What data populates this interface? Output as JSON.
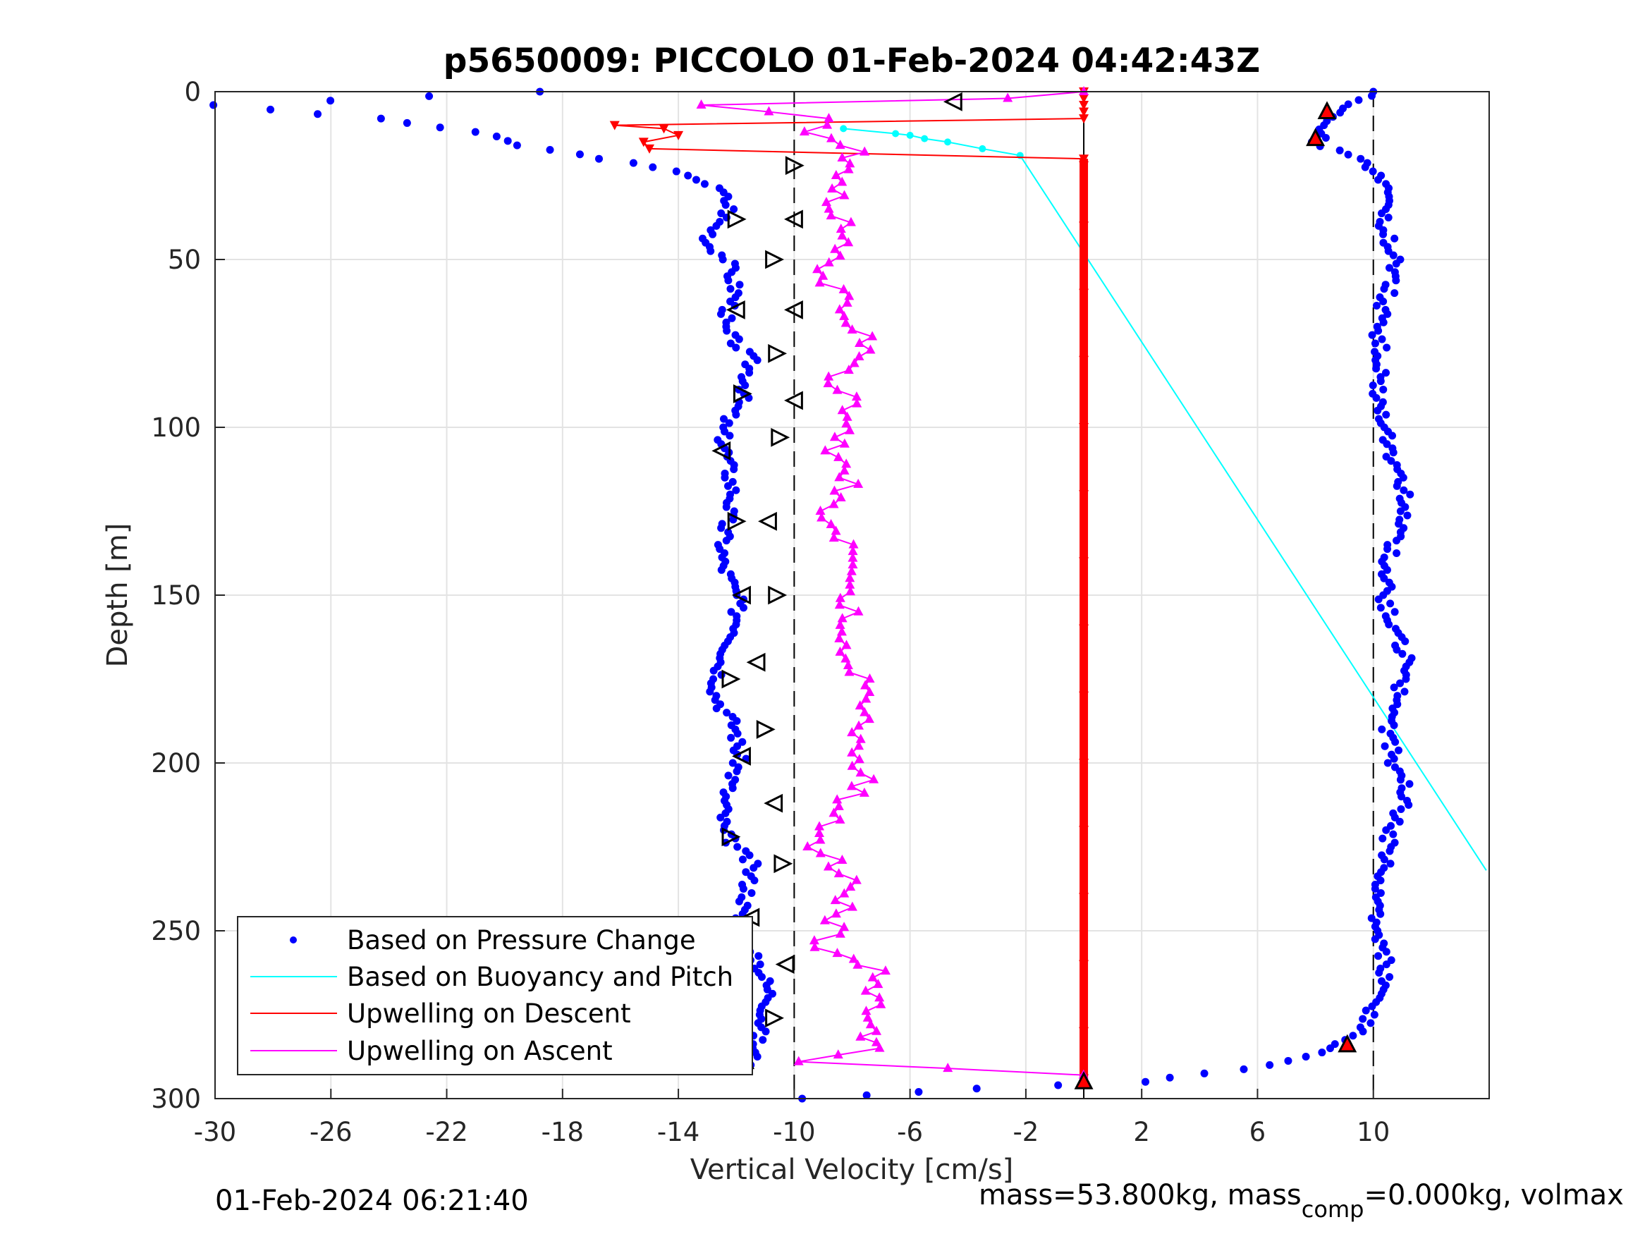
{
  "chart_data": {
    "type": "scatter",
    "title": "p5650009: PICCOLO 01-Feb-2024 04:42:43Z",
    "xlabel": "Vertical Velocity [cm/s]",
    "ylabel": "Depth [m]",
    "xlim": [
      -30,
      14
    ],
    "ylim": [
      0,
      300
    ],
    "y_reversed": true,
    "grid": true,
    "x_ticks": [
      -30,
      -26,
      -22,
      -18,
      -14,
      -10,
      -6,
      -2,
      2,
      6,
      10
    ],
    "y_ticks": [
      0,
      50,
      100,
      150,
      200,
      250,
      300
    ],
    "reference_lines": [
      {
        "x": -10,
        "style": "dashed"
      },
      {
        "x": 10,
        "style": "dashed"
      },
      {
        "x": 0,
        "style": "solid"
      }
    ],
    "legend_position": "bottom-left",
    "legend": [
      "Based on Pressure Change",
      "Based on Buoyancy and Pitch",
      "Upwelling on Descent",
      "Upwelling on Ascent"
    ],
    "colors": {
      "pressure": "#0000ff",
      "buoyancy": "#00ffff",
      "descent": "#ff0000",
      "ascent": "#ff00ff",
      "marker_edge": "#000000",
      "grid": "#e3e3e3"
    },
    "series": [
      {
        "name": "Based on Pressure Change",
        "descent_profile": {
          "depth": [
            0,
            4,
            8,
            12,
            16,
            20,
            25,
            30,
            35,
            40,
            45,
            50,
            60,
            70,
            80,
            90,
            100,
            110,
            120,
            130,
            140,
            150,
            160,
            170,
            180,
            190,
            200,
            210,
            220,
            230,
            240,
            250,
            260,
            270,
            280,
            290
          ],
          "velocity": [
            -18.7,
            -30,
            -24.5,
            -21,
            -19.5,
            -16.5,
            -13.5,
            -12.5,
            -12.2,
            -12.7,
            -13,
            -12.3,
            -12,
            -12.5,
            -11.5,
            -11.7,
            -12.5,
            -12.3,
            -12.1,
            -12.4,
            -12.5,
            -12.0,
            -11.9,
            -12.5,
            -12.7,
            -12.0,
            -11.9,
            -12.4,
            -12.5,
            -11.5,
            -11.6,
            -12.2,
            -11.2,
            -10.8,
            -11.2,
            -11.5
          ]
        },
        "ascent_profile": {
          "depth": [
            300,
            297,
            295,
            290,
            285,
            280,
            270,
            260,
            250,
            240,
            230,
            220,
            210,
            200,
            190,
            180,
            170,
            160,
            150,
            140,
            130,
            120,
            110,
            100,
            90,
            80,
            70,
            60,
            50,
            40,
            30,
            20,
            15,
            10,
            5,
            0
          ],
          "velocity": [
            -9.8,
            -3.5,
            2,
            6.5,
            8.5,
            9.6,
            10.2,
            10.5,
            10.0,
            10.1,
            10.4,
            10.6,
            11.2,
            10.7,
            10.5,
            10.8,
            11.3,
            10.6,
            10.4,
            10.5,
            10.9,
            11.1,
            10.6,
            10.5,
            10.1,
            10.3,
            10.1,
            10.5,
            10.7,
            10.4,
            10.6,
            9.5,
            8.0,
            8.5,
            9.0,
            10.0
          ]
        }
      },
      {
        "name": "Based on Buoyancy and Pitch",
        "depth": [
          11,
          12.5,
          13,
          14,
          15,
          17,
          19,
          232
        ],
        "velocity": [
          -8.3,
          -6.5,
          -6.0,
          -5.5,
          -4.7,
          -3.5,
          -2.2,
          13.9
        ]
      },
      {
        "name": "Upwelling on Descent",
        "depth": [
          0,
          2,
          4,
          6,
          8,
          10,
          11,
          13,
          15,
          17,
          20,
          22,
          40,
          60,
          80,
          100,
          120,
          140,
          160,
          180,
          200,
          220,
          240,
          260,
          280,
          294
        ],
        "velocity": [
          0,
          0,
          0,
          0,
          0,
          -16.2,
          -14.5,
          -14.0,
          -15.2,
          -15.0,
          0,
          0,
          0,
          0,
          0,
          0,
          0,
          0,
          0,
          0,
          0,
          0,
          0,
          0,
          0,
          0
        ]
      },
      {
        "name": "Upwelling on Ascent",
        "depth": [
          293,
          289,
          285,
          280,
          270,
          262,
          255,
          245,
          235,
          225,
          215,
          205,
          195,
          185,
          175,
          165,
          155,
          145,
          135,
          125,
          115,
          105,
          95,
          85,
          75,
          65,
          55,
          45,
          35,
          25,
          18,
          12,
          8,
          4,
          2,
          0
        ],
        "velocity": [
          0,
          -9.5,
          -7.0,
          -7.5,
          -7.2,
          -7.0,
          -9.0,
          -8.5,
          -8.0,
          -9.3,
          -8.5,
          -7.6,
          -8.0,
          -7.2,
          -7.8,
          -8.5,
          -8.0,
          -8.5,
          -8.0,
          -9.0,
          -8.0,
          -8.7,
          -8.0,
          -8.5,
          -7.5,
          -8.0,
          -9.0,
          -8.0,
          -8.5,
          -8.2,
          -7.8,
          -9.5,
          -9.0,
          -13.0,
          -2.5,
          0
        ]
      }
    ],
    "bin_markers": {
      "depth": [
        3,
        38,
        65,
        90,
        107,
        128,
        150,
        175,
        198,
        222,
        246,
        276,
        289,
        22,
        38,
        50,
        65,
        78,
        92,
        103,
        128,
        150,
        170,
        190,
        212,
        230,
        260,
        284,
        295
      ],
      "velocity": [
        -4.5,
        -12.0,
        -12.0,
        -11.8,
        -12.5,
        -12.0,
        -11.8,
        -12.2,
        -11.8,
        -12.2,
        -11.5,
        -10.7,
        -11.7,
        -10.0,
        -10.0,
        -10.7,
        -10.0,
        -10.6,
        -10.0,
        -10.5,
        -10.9,
        -10.6,
        -11.3,
        -11.0,
        -10.7,
        -10.4,
        -10.3,
        9.1,
        0
      ]
    },
    "footer_left": "01-Feb-2024 06:21:40",
    "footer_right": {
      "part1": "mass=53.800kg, mass",
      "subscript": "comp",
      "part2": "=0.000kg, volmax"
    }
  }
}
